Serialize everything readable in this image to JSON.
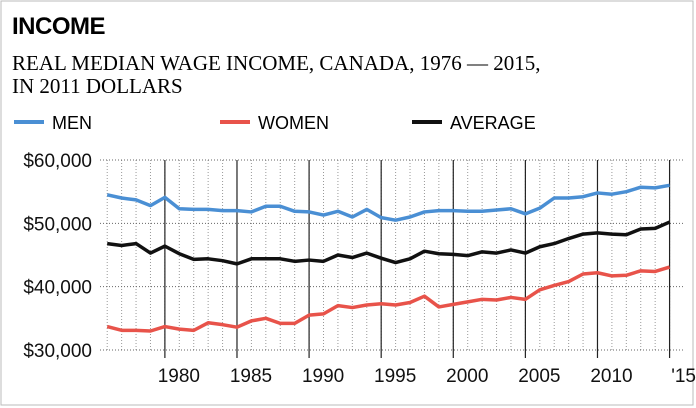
{
  "chart_data": {
    "type": "line",
    "title": "INCOME",
    "subtitle": [
      "REAL MEDIAN WAGE INCOME, CANADA, 1976 — 2015,",
      "IN 2011 DOLLARS"
    ],
    "x": [
      1976,
      1977,
      1978,
      1979,
      1980,
      1981,
      1982,
      1983,
      1984,
      1985,
      1986,
      1987,
      1988,
      1989,
      1990,
      1991,
      1992,
      1993,
      1994,
      1995,
      1996,
      1997,
      1998,
      1999,
      2000,
      2001,
      2002,
      2003,
      2004,
      2005,
      2006,
      2007,
      2008,
      2009,
      2010,
      2011,
      2012,
      2013,
      2014,
      2015
    ],
    "series": [
      {
        "name": "MEN",
        "color": "#4a8fd4",
        "values": [
          54500,
          54000,
          53700,
          52800,
          54100,
          52300,
          52200,
          52200,
          52000,
          52000,
          51800,
          52700,
          52700,
          51900,
          51800,
          51300,
          51900,
          51000,
          52200,
          50900,
          50500,
          51000,
          51800,
          52000,
          52000,
          51900,
          51900,
          52100,
          52300,
          51500,
          52400,
          54000,
          54000,
          54200,
          54800,
          54600,
          55000,
          55700,
          55600,
          56000
        ]
      },
      {
        "name": "WOMEN",
        "color": "#e8534a",
        "values": [
          33700,
          33100,
          33100,
          33000,
          33700,
          33300,
          33100,
          34300,
          34000,
          33600,
          34600,
          35000,
          34200,
          34200,
          35500,
          35700,
          37000,
          36700,
          37100,
          37300,
          37100,
          37500,
          38500,
          36800,
          37200,
          37600,
          38000,
          37900,
          38300,
          38000,
          39500,
          40200,
          40800,
          42000,
          42200,
          41700,
          41800,
          42500,
          42400,
          43100
        ]
      },
      {
        "name": "AVERAGE",
        "color": "#111111",
        "values": [
          46800,
          46500,
          46800,
          45300,
          46400,
          45200,
          44300,
          44400,
          44100,
          43600,
          44400,
          44400,
          44400,
          44000,
          44200,
          44000,
          45000,
          44600,
          45300,
          44500,
          43800,
          44400,
          45600,
          45200,
          45100,
          44900,
          45500,
          45300,
          45800,
          45300,
          46300,
          46800,
          47600,
          48300,
          48500,
          48300,
          48200,
          49100,
          49200,
          50200
        ]
      }
    ],
    "xlim": [
      1975.5,
      2016
    ],
    "xticks": [
      1980,
      1985,
      1990,
      1995,
      2000,
      2005,
      2010,
      {
        "value": 2015,
        "label": "'15"
      }
    ],
    "ylim": [
      30000,
      60000
    ],
    "yticks": [
      {
        "value": 30000,
        "label": "$30,000"
      },
      {
        "value": 40000,
        "label": "$40,000"
      },
      {
        "value": 50000,
        "label": "$50,000"
      },
      {
        "value": 60000,
        "label": "$60,000"
      }
    ],
    "grid": true,
    "legend": "top"
  }
}
